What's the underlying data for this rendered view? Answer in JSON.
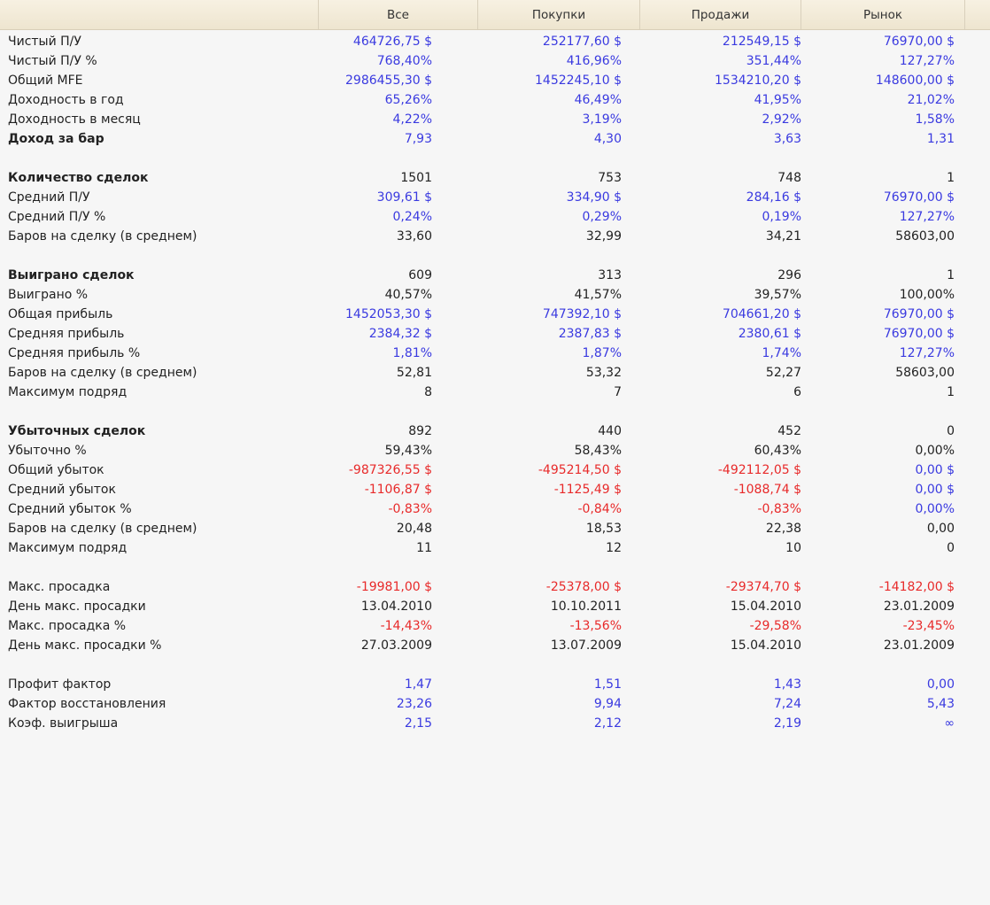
{
  "header": {
    "columns": [
      "",
      "Все",
      "Покупки",
      "Продажи",
      "Рынок"
    ]
  },
  "colors": {
    "b": "#3a3ae0",
    "r": "#e82a2a",
    "k": "#222222"
  },
  "rows": [
    {
      "label": "Чистый П/У",
      "values": [
        "464726,75 $",
        "252177,60 $",
        "212549,15 $",
        "76970,00 $"
      ],
      "colors": [
        "b",
        "b",
        "b",
        "b"
      ]
    },
    {
      "label": "Чистый П/У %",
      "values": [
        "768,40%",
        "416,96%",
        "351,44%",
        "127,27%"
      ],
      "colors": [
        "b",
        "b",
        "b",
        "b"
      ]
    },
    {
      "label": "Общий MFE",
      "values": [
        "2986455,30 $",
        "1452245,10 $",
        "1534210,20 $",
        "148600,00 $"
      ],
      "colors": [
        "b",
        "b",
        "b",
        "b"
      ]
    },
    {
      "label": "Доходность в год",
      "values": [
        "65,26%",
        "46,49%",
        "41,95%",
        "21,02%"
      ],
      "colors": [
        "b",
        "b",
        "b",
        "b"
      ]
    },
    {
      "label": "Доходность в месяц",
      "values": [
        "4,22%",
        "3,19%",
        "2,92%",
        "1,58%"
      ],
      "colors": [
        "b",
        "b",
        "b",
        "b"
      ]
    },
    {
      "label": "Доход за бар",
      "bold": true,
      "values": [
        "7,93",
        "4,30",
        "3,63",
        "1,31"
      ],
      "colors": [
        "b",
        "b",
        "b",
        "b"
      ]
    },
    {
      "blank": true
    },
    {
      "label": "Количество сделок",
      "bold": true,
      "values": [
        "1501",
        "753",
        "748",
        "1"
      ],
      "colors": [
        "k",
        "k",
        "k",
        "k"
      ]
    },
    {
      "label": "Средний П/У",
      "values": [
        "309,61 $",
        "334,90 $",
        "284,16 $",
        "76970,00 $"
      ],
      "colors": [
        "b",
        "b",
        "b",
        "b"
      ]
    },
    {
      "label": "Средний П/У %",
      "values": [
        "0,24%",
        "0,29%",
        "0,19%",
        "127,27%"
      ],
      "colors": [
        "b",
        "b",
        "b",
        "b"
      ]
    },
    {
      "label": "Баров на сделку (в среднем)",
      "values": [
        "33,60",
        "32,99",
        "34,21",
        "58603,00"
      ],
      "colors": [
        "k",
        "k",
        "k",
        "k"
      ]
    },
    {
      "blank": true
    },
    {
      "label": "Выиграно сделок",
      "bold": true,
      "values": [
        "609",
        "313",
        "296",
        "1"
      ],
      "colors": [
        "k",
        "k",
        "k",
        "k"
      ]
    },
    {
      "label": "Выиграно %",
      "values": [
        "40,57%",
        "41,57%",
        "39,57%",
        "100,00%"
      ],
      "colors": [
        "k",
        "k",
        "k",
        "k"
      ]
    },
    {
      "label": "Общая прибыль",
      "values": [
        "1452053,30 $",
        "747392,10 $",
        "704661,20 $",
        "76970,00 $"
      ],
      "colors": [
        "b",
        "b",
        "b",
        "b"
      ]
    },
    {
      "label": "Средняя прибыль",
      "values": [
        "2384,32 $",
        "2387,83 $",
        "2380,61 $",
        "76970,00 $"
      ],
      "colors": [
        "b",
        "b",
        "b",
        "b"
      ]
    },
    {
      "label": "Средняя прибыль %",
      "values": [
        "1,81%",
        "1,87%",
        "1,74%",
        "127,27%"
      ],
      "colors": [
        "b",
        "b",
        "b",
        "b"
      ]
    },
    {
      "label": "Баров на сделку (в среднем)",
      "values": [
        "52,81",
        "53,32",
        "52,27",
        "58603,00"
      ],
      "colors": [
        "k",
        "k",
        "k",
        "k"
      ]
    },
    {
      "label": "Максимум подряд",
      "values": [
        "8",
        "7",
        "6",
        "1"
      ],
      "colors": [
        "k",
        "k",
        "k",
        "k"
      ]
    },
    {
      "blank": true
    },
    {
      "label": "Убыточных сделок",
      "bold": true,
      "values": [
        "892",
        "440",
        "452",
        "0"
      ],
      "colors": [
        "k",
        "k",
        "k",
        "k"
      ]
    },
    {
      "label": "Убыточно %",
      "values": [
        "59,43%",
        "58,43%",
        "60,43%",
        "0,00%"
      ],
      "colors": [
        "k",
        "k",
        "k",
        "k"
      ]
    },
    {
      "label": "Общий убыток",
      "values": [
        "-987326,55 $",
        "-495214,50 $",
        "-492112,05 $",
        "0,00 $"
      ],
      "colors": [
        "r",
        "r",
        "r",
        "b"
      ]
    },
    {
      "label": "Средний убыток",
      "values": [
        "-1106,87 $",
        "-1125,49 $",
        "-1088,74 $",
        "0,00 $"
      ],
      "colors": [
        "r",
        "r",
        "r",
        "b"
      ]
    },
    {
      "label": "Средний убыток %",
      "values": [
        "-0,83%",
        "-0,84%",
        "-0,83%",
        "0,00%"
      ],
      "colors": [
        "r",
        "r",
        "r",
        "b"
      ]
    },
    {
      "label": "Баров на сделку (в среднем)",
      "values": [
        "20,48",
        "18,53",
        "22,38",
        "0,00"
      ],
      "colors": [
        "k",
        "k",
        "k",
        "k"
      ]
    },
    {
      "label": "Максимум подряд",
      "values": [
        "11",
        "12",
        "10",
        "0"
      ],
      "colors": [
        "k",
        "k",
        "k",
        "k"
      ]
    },
    {
      "blank": true
    },
    {
      "label": "Макс. просадка",
      "values": [
        "-19981,00 $",
        "-25378,00 $",
        "-29374,70 $",
        "-14182,00 $"
      ],
      "colors": [
        "r",
        "r",
        "r",
        "r"
      ]
    },
    {
      "label": "День макс. просадки",
      "values": [
        "13.04.2010",
        "10.10.2011",
        "15.04.2010",
        "23.01.2009"
      ],
      "colors": [
        "k",
        "k",
        "k",
        "k"
      ]
    },
    {
      "label": "Макс. просадка %",
      "values": [
        "-14,43%",
        "-13,56%",
        "-29,58%",
        "-23,45%"
      ],
      "colors": [
        "r",
        "r",
        "r",
        "r"
      ]
    },
    {
      "label": "День макс. просадки %",
      "values": [
        "27.03.2009",
        "13.07.2009",
        "15.04.2010",
        "23.01.2009"
      ],
      "colors": [
        "k",
        "k",
        "k",
        "k"
      ]
    },
    {
      "blank": true
    },
    {
      "label": "Профит фактор",
      "values": [
        "1,47",
        "1,51",
        "1,43",
        "0,00"
      ],
      "colors": [
        "b",
        "b",
        "b",
        "b"
      ]
    },
    {
      "label": "Фактор восстановления",
      "values": [
        "23,26",
        "9,94",
        "7,24",
        "5,43"
      ],
      "colors": [
        "b",
        "b",
        "b",
        "b"
      ]
    },
    {
      "label": "Коэф. выигрыша",
      "values": [
        "2,15",
        "2,12",
        "2,19",
        "∞"
      ],
      "colors": [
        "b",
        "b",
        "b",
        "b"
      ]
    }
  ]
}
